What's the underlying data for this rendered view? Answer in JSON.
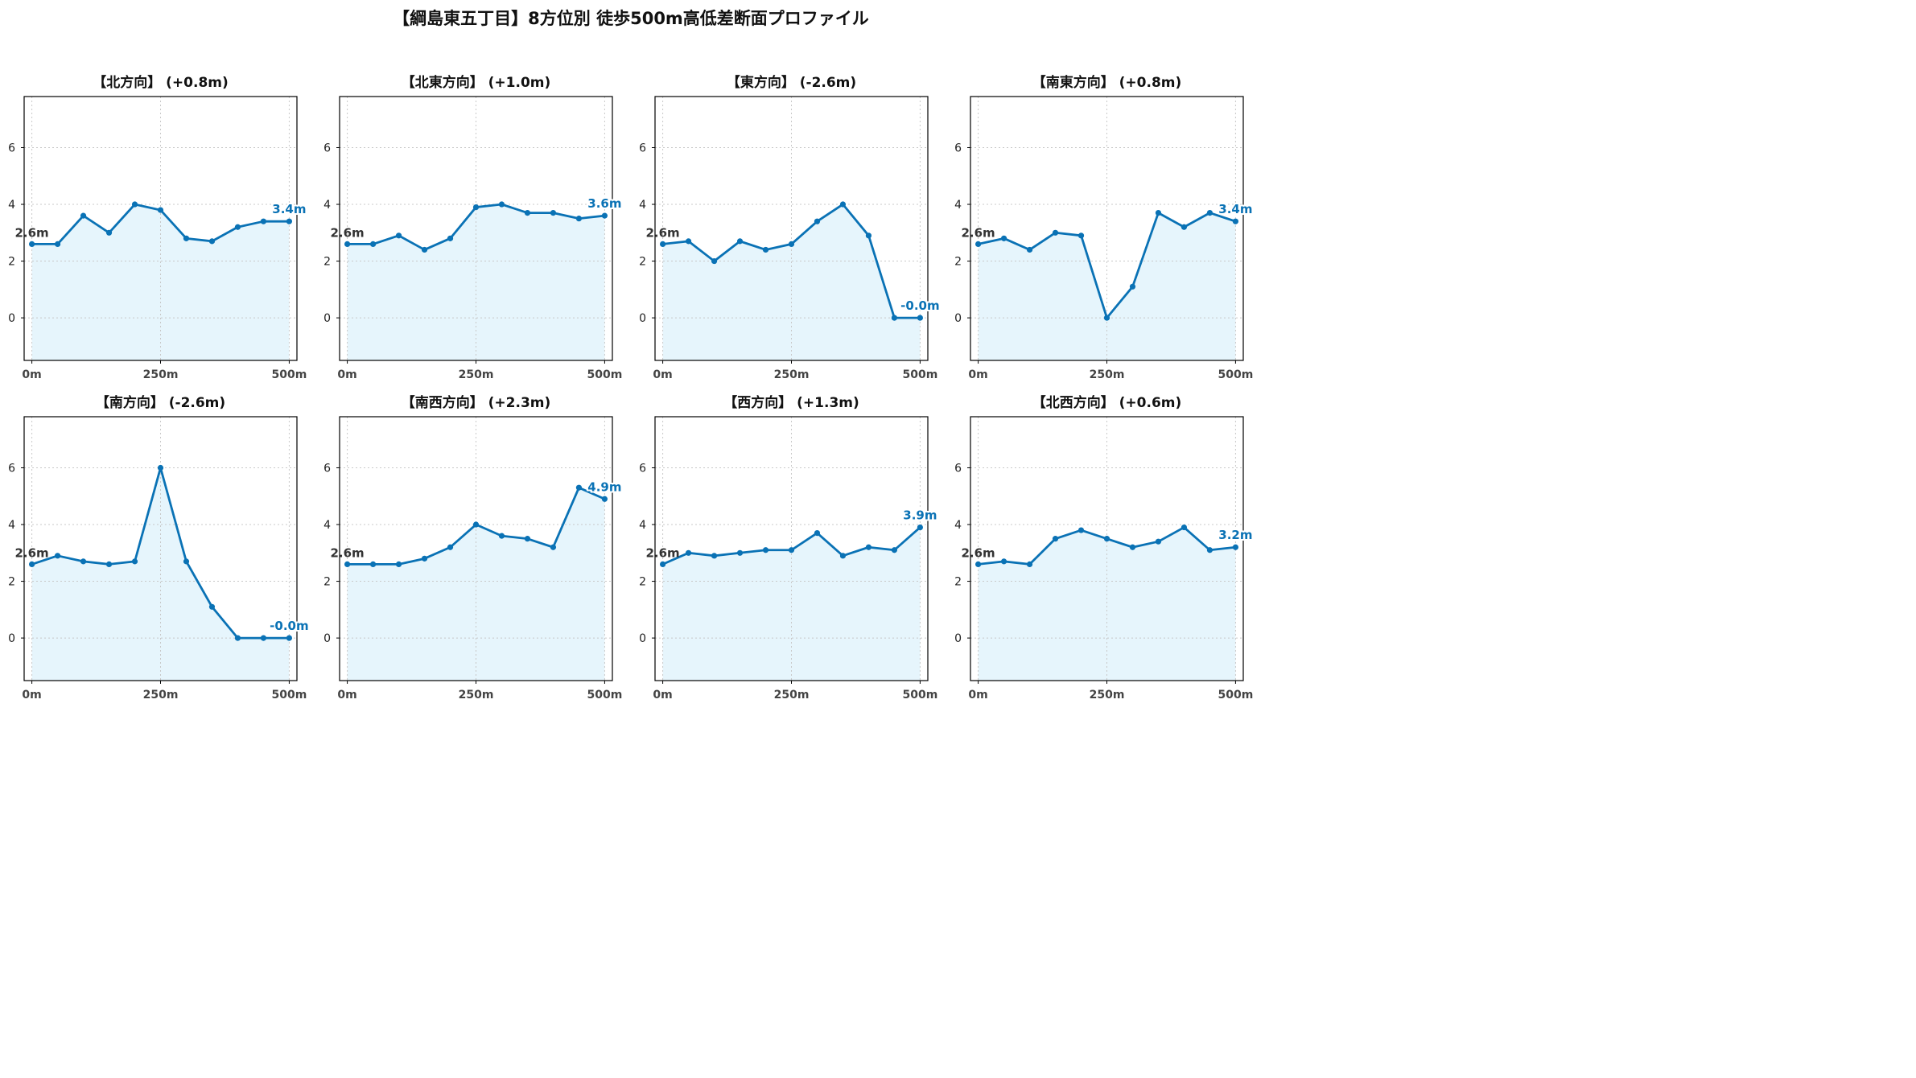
{
  "suptitle": "【綱島東五丁目】8方位別 徒歩500m高低差断面プロファイル",
  "colors": {
    "line": "#0a72b5",
    "fill": "#e6f5fc",
    "start_label": "#333333",
    "end_label": "#0a72b5",
    "grid": "#c8c8c8"
  },
  "chart_data": [
    {
      "type": "area",
      "title": "【北方向】 (+0.8m)",
      "x": [
        0,
        50,
        100,
        150,
        200,
        250,
        300,
        350,
        400,
        450,
        500
      ],
      "values": [
        2.6,
        2.6,
        3.6,
        3.0,
        4.0,
        3.8,
        2.8,
        2.7,
        3.2,
        3.4,
        3.4
      ],
      "start_label": "2.6m",
      "end_label": "3.4m",
      "xticks": [
        0,
        250,
        500
      ],
      "xtick_labels": [
        "0m",
        "250m",
        "500m"
      ],
      "yticks": [
        0,
        2,
        4,
        6
      ],
      "ytick_labels": [
        "0",
        "2",
        "4",
        "6"
      ],
      "xlim": [
        -15,
        515
      ],
      "ylim": [
        -1.5,
        7.8
      ],
      "grid": true
    },
    {
      "type": "area",
      "title": "【北東方向】 (+1.0m)",
      "x": [
        0,
        50,
        100,
        150,
        200,
        250,
        300,
        350,
        400,
        450,
        500
      ],
      "values": [
        2.6,
        2.6,
        2.9,
        2.4,
        2.8,
        3.9,
        4.0,
        3.7,
        3.7,
        3.5,
        3.6
      ],
      "start_label": "2.6m",
      "end_label": "3.6m",
      "xticks": [
        0,
        250,
        500
      ],
      "xtick_labels": [
        "0m",
        "250m",
        "500m"
      ],
      "yticks": [
        0,
        2,
        4,
        6
      ],
      "ytick_labels": [
        "0",
        "2",
        "4",
        "6"
      ],
      "xlim": [
        -15,
        515
      ],
      "ylim": [
        -1.5,
        7.8
      ],
      "grid": true
    },
    {
      "type": "area",
      "title": "【東方向】 (-2.6m)",
      "x": [
        0,
        50,
        100,
        150,
        200,
        250,
        300,
        350,
        400,
        450,
        500
      ],
      "values": [
        2.6,
        2.7,
        2.0,
        2.7,
        2.4,
        2.6,
        3.4,
        4.0,
        2.9,
        0.0,
        0.0
      ],
      "start_label": "2.6m",
      "end_label": "-0.0m",
      "xticks": [
        0,
        250,
        500
      ],
      "xtick_labels": [
        "0m",
        "250m",
        "500m"
      ],
      "yticks": [
        0,
        2,
        4,
        6
      ],
      "ytick_labels": [
        "0",
        "2",
        "4",
        "6"
      ],
      "xlim": [
        -15,
        515
      ],
      "ylim": [
        -1.5,
        7.8
      ],
      "grid": true
    },
    {
      "type": "area",
      "title": "【南東方向】 (+0.8m)",
      "x": [
        0,
        50,
        100,
        150,
        200,
        250,
        300,
        350,
        400,
        450,
        500
      ],
      "values": [
        2.6,
        2.8,
        2.4,
        3.0,
        2.9,
        0.0,
        1.1,
        3.7,
        3.2,
        3.7,
        3.4
      ],
      "start_label": "2.6m",
      "end_label": "3.4m",
      "xticks": [
        0,
        250,
        500
      ],
      "xtick_labels": [
        "0m",
        "250m",
        "500m"
      ],
      "yticks": [
        0,
        2,
        4,
        6
      ],
      "ytick_labels": [
        "0",
        "2",
        "4",
        "6"
      ],
      "xlim": [
        -15,
        515
      ],
      "ylim": [
        -1.5,
        7.8
      ],
      "grid": true
    },
    {
      "type": "area",
      "title": "【南方向】 (-2.6m)",
      "x": [
        0,
        50,
        100,
        150,
        200,
        250,
        300,
        350,
        400,
        450,
        500
      ],
      "values": [
        2.6,
        2.9,
        2.7,
        2.6,
        2.7,
        6.0,
        2.7,
        1.1,
        0.0,
        0.0,
        0.0
      ],
      "start_label": "2.6m",
      "end_label": "-0.0m",
      "xticks": [
        0,
        250,
        500
      ],
      "xtick_labels": [
        "0m",
        "250m",
        "500m"
      ],
      "yticks": [
        0,
        2,
        4,
        6
      ],
      "ytick_labels": [
        "0",
        "2",
        "4",
        "6"
      ],
      "xlim": [
        -15,
        515
      ],
      "ylim": [
        -1.5,
        7.8
      ],
      "grid": true
    },
    {
      "type": "area",
      "title": "【南西方向】 (+2.3m)",
      "x": [
        0,
        50,
        100,
        150,
        200,
        250,
        300,
        350,
        400,
        450,
        500
      ],
      "values": [
        2.6,
        2.6,
        2.6,
        2.8,
        3.2,
        4.0,
        3.6,
        3.5,
        3.2,
        5.3,
        4.9
      ],
      "start_label": "2.6m",
      "end_label": "4.9m",
      "xticks": [
        0,
        250,
        500
      ],
      "xtick_labels": [
        "0m",
        "250m",
        "500m"
      ],
      "yticks": [
        0,
        2,
        4,
        6
      ],
      "ytick_labels": [
        "0",
        "2",
        "4",
        "6"
      ],
      "xlim": [
        -15,
        515
      ],
      "ylim": [
        -1.5,
        7.8
      ],
      "grid": true
    },
    {
      "type": "area",
      "title": "【西方向】 (+1.3m)",
      "x": [
        0,
        50,
        100,
        150,
        200,
        250,
        300,
        350,
        400,
        450,
        500
      ],
      "values": [
        2.6,
        3.0,
        2.9,
        3.0,
        3.1,
        3.1,
        3.7,
        2.9,
        3.2,
        3.1,
        3.9
      ],
      "start_label": "2.6m",
      "end_label": "3.9m",
      "xticks": [
        0,
        250,
        500
      ],
      "xtick_labels": [
        "0m",
        "250m",
        "500m"
      ],
      "yticks": [
        0,
        2,
        4,
        6
      ],
      "ytick_labels": [
        "0",
        "2",
        "4",
        "6"
      ],
      "xlim": [
        -15,
        515
      ],
      "ylim": [
        -1.5,
        7.8
      ],
      "grid": true
    },
    {
      "type": "area",
      "title": "【北西方向】 (+0.6m)",
      "x": [
        0,
        50,
        100,
        150,
        200,
        250,
        300,
        350,
        400,
        450,
        500
      ],
      "values": [
        2.6,
        2.7,
        2.6,
        3.5,
        3.8,
        3.5,
        3.2,
        3.4,
        3.9,
        3.1,
        3.2
      ],
      "start_label": "2.6m",
      "end_label": "3.2m",
      "xticks": [
        0,
        250,
        500
      ],
      "xtick_labels": [
        "0m",
        "250m",
        "500m"
      ],
      "yticks": [
        0,
        2,
        4,
        6
      ],
      "ytick_labels": [
        "0",
        "2",
        "4",
        "6"
      ],
      "xlim": [
        -15,
        515
      ],
      "ylim": [
        -1.5,
        7.8
      ],
      "grid": true
    }
  ]
}
